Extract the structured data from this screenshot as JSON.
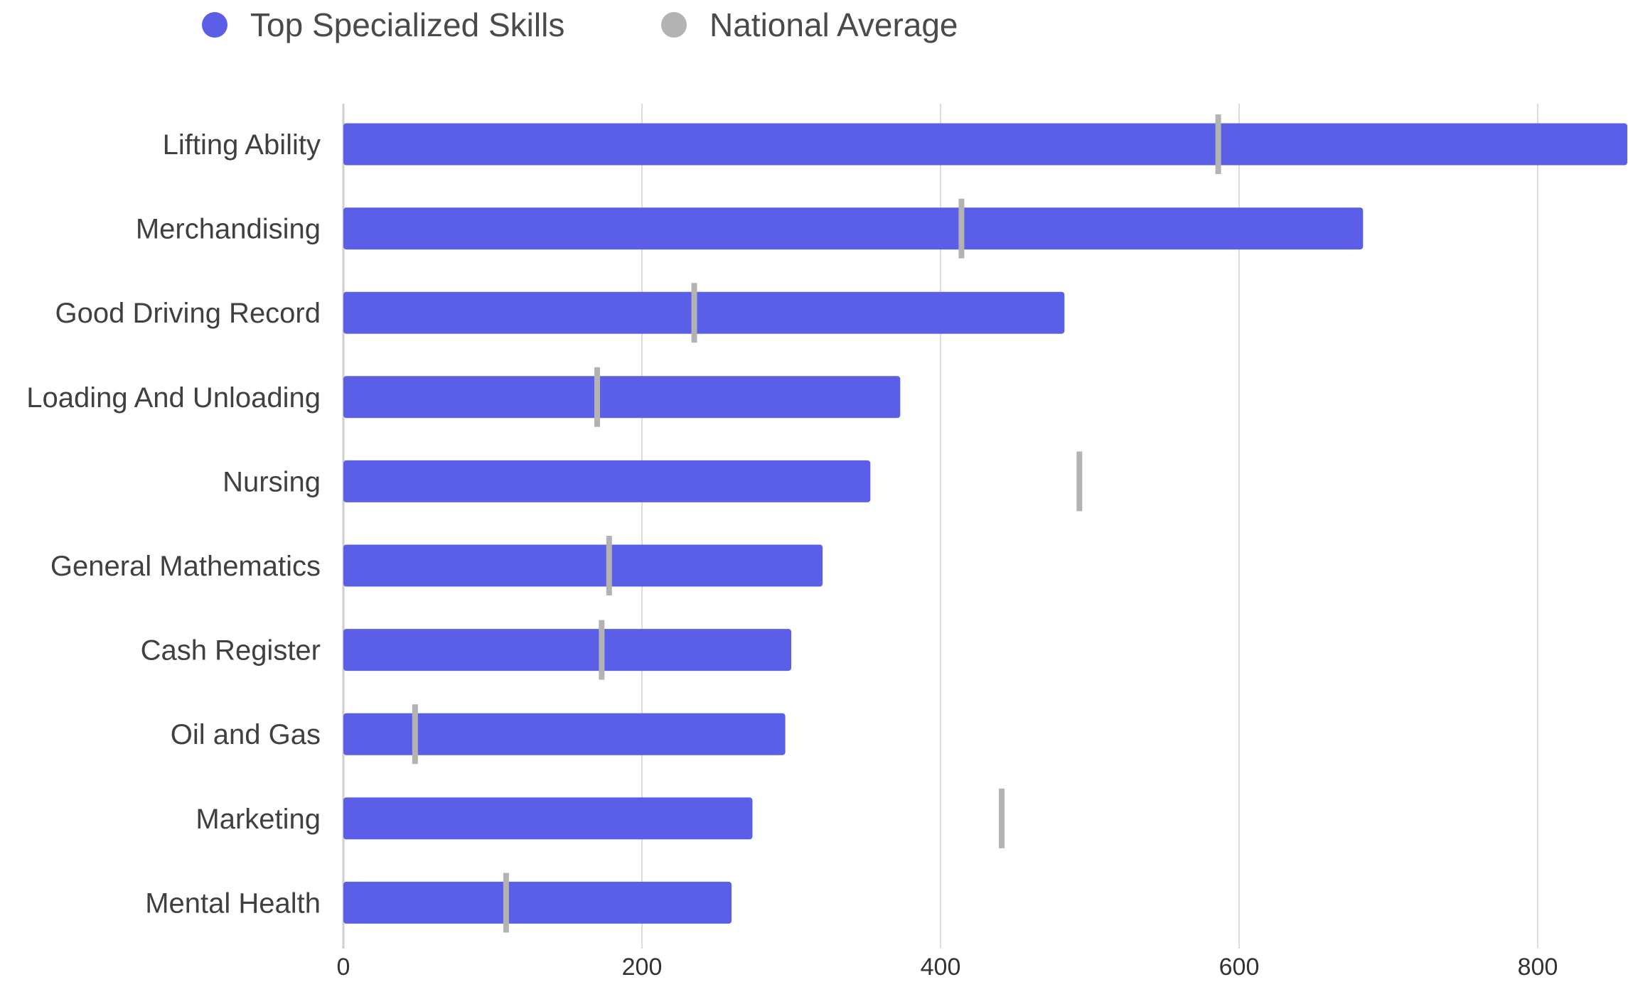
{
  "chart_data": {
    "type": "bar",
    "orientation": "horizontal",
    "categories": [
      "Lifting Ability",
      "Merchandising",
      "Good Driving Record",
      "Loading And Unloading",
      "Nursing",
      "General Mathematics",
      "Cash Register",
      "Oil and Gas",
      "Marketing",
      "Mental Health"
    ],
    "series": [
      {
        "name": "Top Specialized Skills",
        "color": "#5b5ee6",
        "mark": "bar",
        "values": [
          860,
          683,
          483,
          373,
          353,
          321,
          300,
          296,
          274,
          260
        ]
      },
      {
        "name": "National Average",
        "color": "#b3b3b3",
        "mark": "tick",
        "values": [
          586,
          414,
          235,
          170,
          493,
          178,
          173,
          48,
          441,
          109
        ]
      }
    ],
    "x_ticks": [
      0,
      200,
      400,
      600,
      800
    ],
    "x_tick_labels": [
      "0",
      "200",
      "400",
      "600",
      "800"
    ],
    "xlim": [
      0,
      860
    ],
    "grid": true,
    "legend_position": "top-left",
    "title": "",
    "xlabel": "",
    "ylabel": ""
  }
}
